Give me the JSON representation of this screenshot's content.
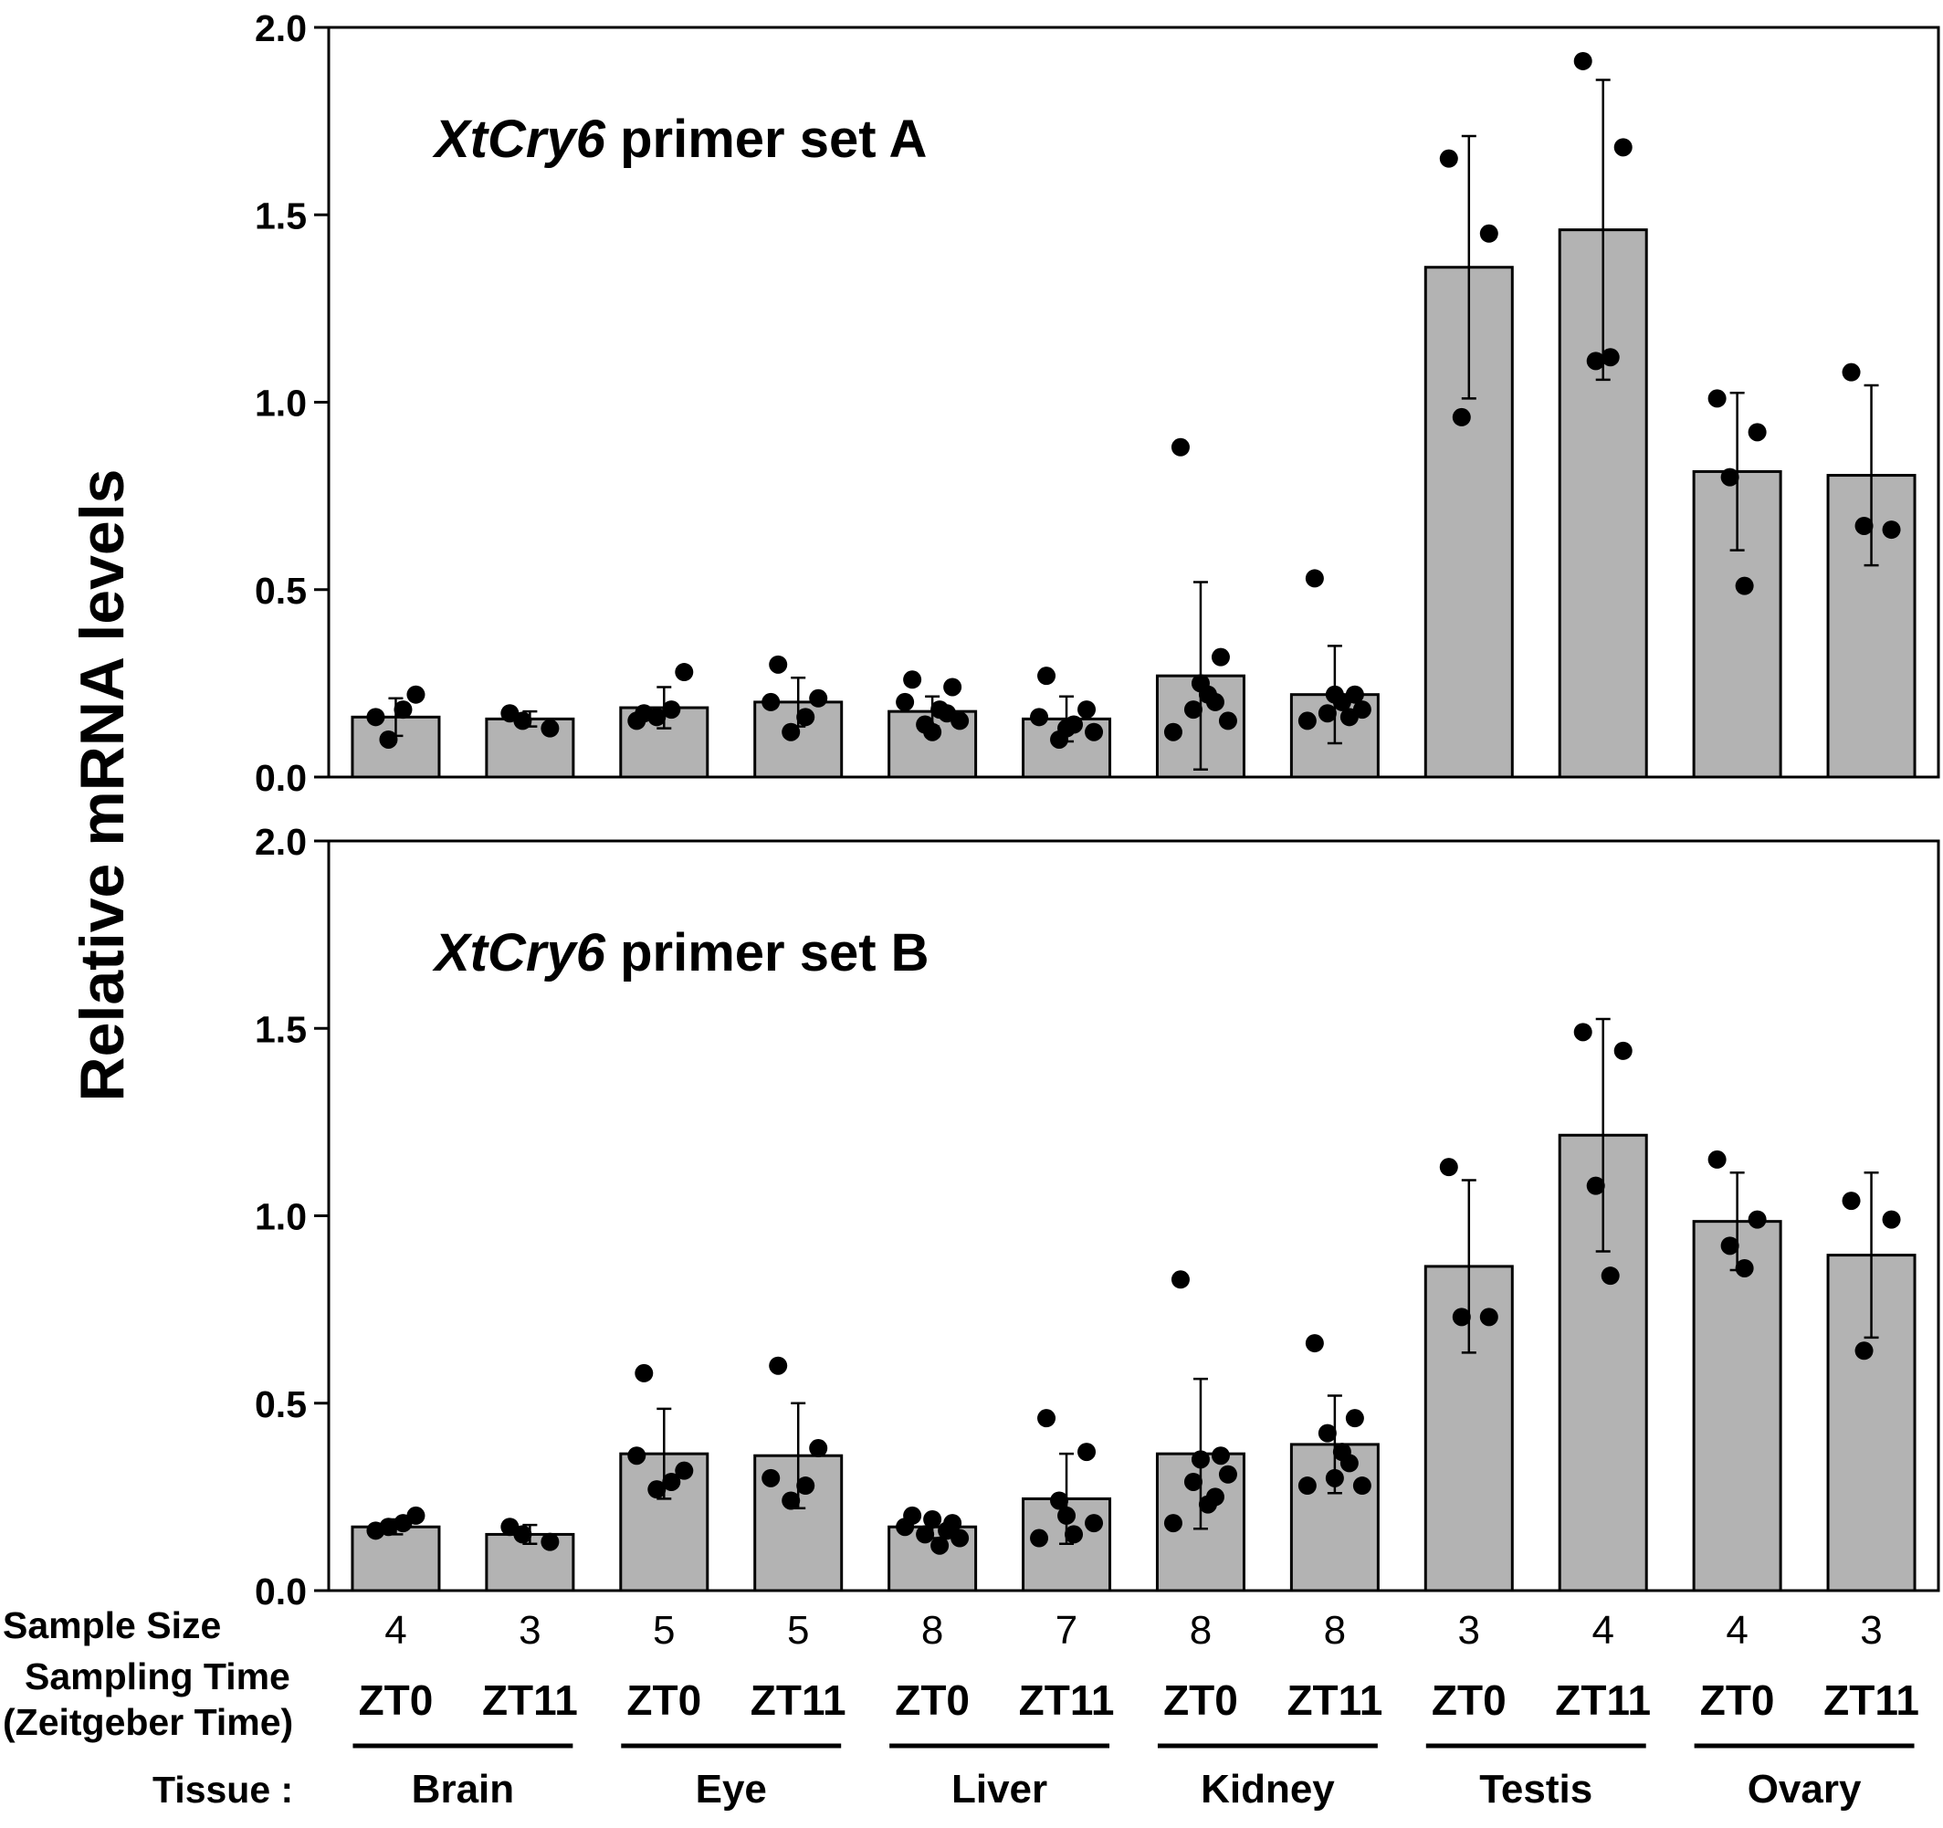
{
  "chart_data": {
    "ylabel": "Relative mRNA levels",
    "ylim": [
      0,
      2.0
    ],
    "yticks": [
      "0.0",
      "0.5",
      "1.0",
      "1.5",
      "2.0"
    ],
    "categories": [
      "ZT0",
      "ZT11",
      "ZT0",
      "ZT11",
      "ZT0",
      "ZT11",
      "ZT0",
      "ZT11",
      "ZT0",
      "ZT11",
      "ZT0",
      "ZT11"
    ],
    "sample_size": [
      "4",
      "3",
      "5",
      "5",
      "8",
      "7",
      "8",
      "8",
      "3",
      "4",
      "4",
      "3"
    ],
    "row_labels": {
      "sample_size": "Sample Size",
      "sampling_time_1": "Sampling Time",
      "sampling_time_2": "(Zeitgeber Time)",
      "tissue": "Tissue :"
    },
    "tissues": [
      "Brain",
      "Eye",
      "Liver",
      "Kidney",
      "Testis",
      "Ovary"
    ],
    "bar_color": "#b3b3b3",
    "panels": [
      {
        "type": "bar",
        "title_italic": "XtCry6",
        "title_rest": " primer set A",
        "values": [
          0.16,
          0.155,
          0.185,
          0.2,
          0.175,
          0.155,
          0.27,
          0.22,
          1.36,
          1.46,
          0.815,
          0.805
        ],
        "errors": [
          0.05,
          0.02,
          0.055,
          0.065,
          0.04,
          0.06,
          0.25,
          0.13,
          0.35,
          0.4,
          0.21,
          0.24
        ],
        "points": [
          [
            0.16,
            0.22,
            0.1,
            0.18
          ],
          [
            0.17,
            0.13,
            0.15
          ],
          [
            0.17,
            0.28,
            0.16,
            0.18,
            0.15
          ],
          [
            0.3,
            0.21,
            0.12,
            0.16,
            0.2
          ],
          [
            0.26,
            0.24,
            0.14,
            0.18,
            0.2,
            0.15,
            0.12,
            0.17
          ],
          [
            0.27,
            0.18,
            0.1,
            0.14,
            0.16,
            0.12,
            0.13
          ],
          [
            0.88,
            0.32,
            0.18,
            0.22,
            0.12,
            0.15,
            0.25,
            0.2
          ],
          [
            0.53,
            0.22,
            0.17,
            0.2,
            0.15,
            0.18,
            0.22,
            0.16
          ],
          [
            1.65,
            1.45,
            0.96
          ],
          [
            1.91,
            1.68,
            1.11,
            1.12
          ],
          [
            1.01,
            0.92,
            0.8,
            0.51
          ],
          [
            1.08,
            0.66,
            0.67
          ]
        ]
      },
      {
        "type": "bar",
        "title_italic": "XtCry6",
        "title_rest": " primer set B",
        "values": [
          0.17,
          0.15,
          0.365,
          0.36,
          0.17,
          0.245,
          0.365,
          0.39,
          0.865,
          1.215,
          0.985,
          0.895
        ],
        "errors": [
          0.02,
          0.025,
          0.12,
          0.14,
          0.03,
          0.12,
          0.2,
          0.13,
          0.23,
          0.31,
          0.13,
          0.22
        ],
        "points": [
          [
            0.16,
            0.2,
            0.17,
            0.18
          ],
          [
            0.17,
            0.13,
            0.15
          ],
          [
            0.58,
            0.32,
            0.27,
            0.29,
            0.36
          ],
          [
            0.6,
            0.38,
            0.24,
            0.28,
            0.3
          ],
          [
            0.2,
            0.18,
            0.15,
            0.12,
            0.17,
            0.14,
            0.19,
            0.16
          ],
          [
            0.46,
            0.37,
            0.24,
            0.15,
            0.14,
            0.18,
            0.2
          ],
          [
            0.83,
            0.36,
            0.29,
            0.23,
            0.18,
            0.31,
            0.35,
            0.25
          ],
          [
            0.66,
            0.46,
            0.42,
            0.37,
            0.28,
            0.28,
            0.3,
            0.34
          ],
          [
            1.13,
            0.73,
            0.73
          ],
          [
            1.49,
            1.44,
            1.08,
            0.84
          ],
          [
            1.15,
            0.99,
            0.92,
            0.86
          ],
          [
            1.04,
            0.99,
            0.64
          ]
        ]
      }
    ]
  }
}
